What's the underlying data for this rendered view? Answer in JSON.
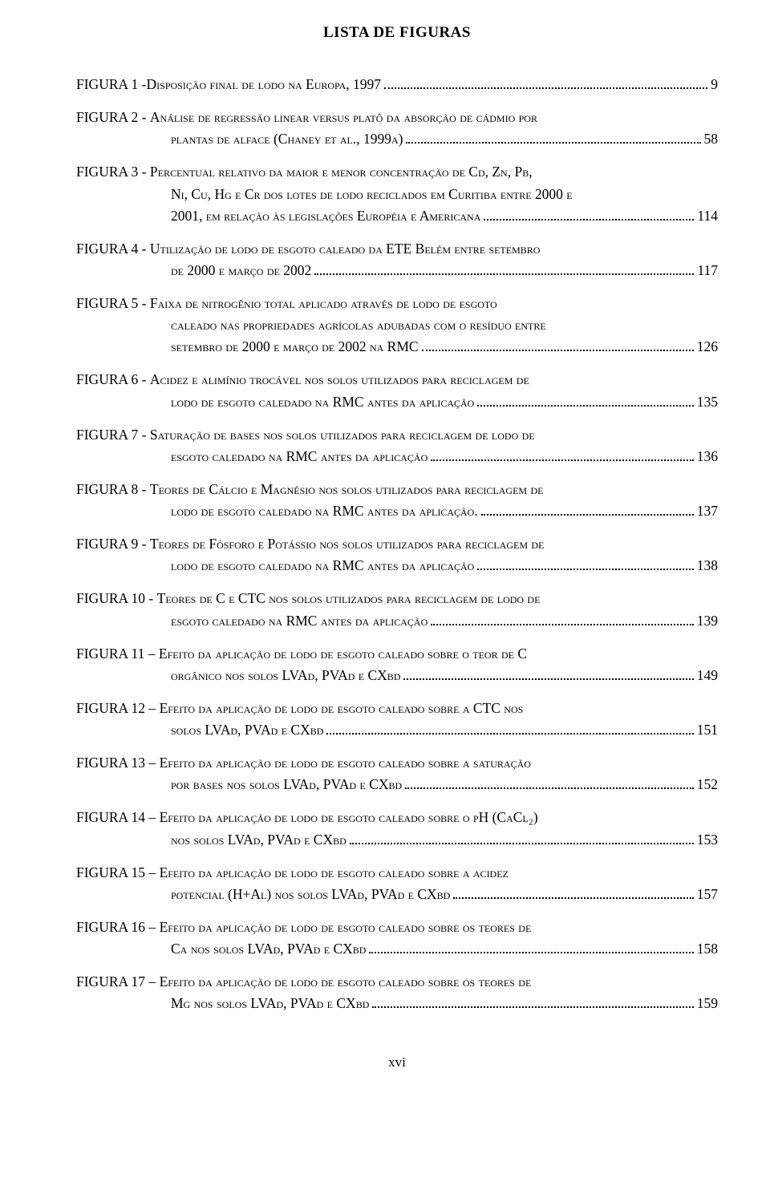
{
  "title": "LISTA DE FIGURAS",
  "footer_page": "xvi",
  "entries": [
    {
      "label": "FIGURA 1 - ",
      "lines": [
        "Disposição final de lodo na Europa, 1997"
      ],
      "page": "9"
    },
    {
      "label": "FIGURA 2 - ",
      "lines": [
        "Análise de regressão linear versus platô da absorção de cádmio por",
        "plantas de alface (Chaney et al., 1999a)"
      ],
      "page": "58"
    },
    {
      "label": "FIGURA 3 - ",
      "lines": [
        "Percentual relativo da maior e menor concentração de Cd, Zn, Pb,",
        "Ni, Cu, Hg e Cr dos lotes de lodo reciclados em Curitiba entre 2000 e",
        "2001, em relação às legislações Européia e Americana"
      ],
      "page": "114"
    },
    {
      "label": "FIGURA 4 - ",
      "lines": [
        "Utilização de lodo de esgoto caleado da ETE Belém entre setembro",
        "de 2000 e março de 2002"
      ],
      "page": "117"
    },
    {
      "label": "FIGURA 5 - ",
      "lines": [
        "Faixa de nitrogênio total aplicado através de lodo de esgoto",
        "caleado nas propriedades agrícolas adubadas com o resíduo entre",
        "setembro de 2000 e março de 2002 na RMC"
      ],
      "page": "126"
    },
    {
      "label": "FIGURA 6 - ",
      "lines": [
        "Acidez e alimínio trocável nos solos utilizados para reciclagem de",
        "lodo de esgoto caledado na RMC antes da aplicação"
      ],
      "page": "135"
    },
    {
      "label": "FIGURA 7 - ",
      "lines": [
        "Saturação de bases nos solos utilizados para reciclagem de lodo de",
        "esgoto caledado na RMC antes da aplicação"
      ],
      "page": "136"
    },
    {
      "label": "FIGURA 8 - ",
      "lines": [
        "Teores de Cálcio e Magnésio nos solos utilizados para reciclagem de",
        "lodo de esgoto caledado na RMC antes da aplicação."
      ],
      "page": "137"
    },
    {
      "label": "FIGURA 9 - ",
      "lines": [
        "Teores de Fósforo e Potássio nos solos utilizados para reciclagem de",
        "lodo de esgoto caledado na RMC antes da aplicação"
      ],
      "page": "138"
    },
    {
      "label": "FIGURA 10 - ",
      "lines": [
        "Teores de C e CTC nos solos utilizados para reciclagem de lodo de",
        "esgoto caledado na RMC antes da aplicação"
      ],
      "page": "139"
    },
    {
      "label": "FIGURA 11 – ",
      "lines": [
        "Efeito da aplicação de lodo de esgoto caleado sobre o teor de C",
        "orgânico nos solos LVAd, PVAd e CXbd"
      ],
      "page": "149"
    },
    {
      "label": "FIGURA 12 – ",
      "lines": [
        "Efeito da aplicação de lodo de esgoto caleado sobre a CTC nos",
        "solos LVAd, PVAd e CXbd"
      ],
      "page": "151"
    },
    {
      "label": "FIGURA 13 – ",
      "lines": [
        "Efeito da aplicação de lodo de esgoto caleado sobre a saturação",
        "por bases nos solos LVAd, PVAd e CXbd"
      ],
      "page": "152"
    },
    {
      "label": "FIGURA 14 – ",
      "lines": [
        "Efeito da aplicação de lodo de esgoto caleado sobre o pH (CaCl₂)",
        "nos solos LVAd, PVAd e CXbd"
      ],
      "page": "153"
    },
    {
      "label": "FIGURA 15 – ",
      "lines": [
        "Efeito da aplicação de lodo de esgoto caleado sobre a acidez",
        "potencial (H+Al) nos solos LVAd, PVAd e CXbd"
      ],
      "page": "157"
    },
    {
      "label": "FIGURA 16 – ",
      "lines": [
        "Efeito da aplicação de lodo de esgoto caleado sobre os teores de",
        "Ca nos solos LVAd, PVAd e CXbd"
      ],
      "page": "158"
    },
    {
      "label": "FIGURA 17 – ",
      "lines": [
        "Efeito da aplicação de lodo de esgoto caleado sobre os teores de",
        "Mg nos solos LVAd, PVAd e CXbd"
      ],
      "page": "159"
    }
  ]
}
